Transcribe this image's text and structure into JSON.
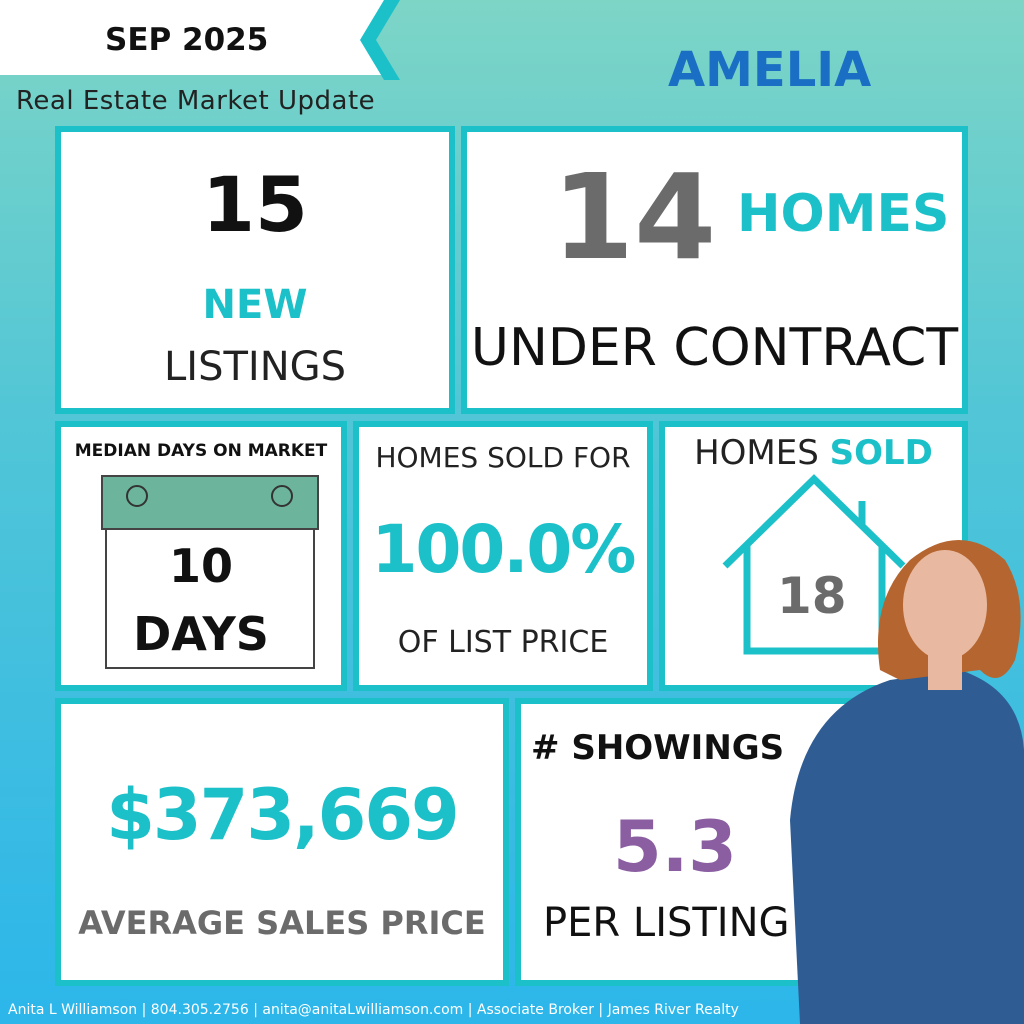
{
  "header": {
    "date": "SEP 2025",
    "subtitle": "Real Estate Market Update",
    "area": "AMELIA"
  },
  "new_listings": {
    "count": "15",
    "label1": "NEW",
    "label2": "LISTINGS"
  },
  "under_contract": {
    "count": "14",
    "label1": "HOMES",
    "label2": "UNDER CONTRACT"
  },
  "days_on_market": {
    "title": "MEDIAN DAYS ON MARKET",
    "value": "10",
    "unit": "DAYS"
  },
  "sold_pct": {
    "label1": "HOMES SOLD FOR",
    "value": "100.0%",
    "label2": "OF LIST PRICE"
  },
  "homes_sold": {
    "label1": "HOMES",
    "label2": "SOLD",
    "count": "18"
  },
  "avg_price": {
    "value": "$373,669",
    "label": "AVERAGE SALES PRICE"
  },
  "showings": {
    "title": "# SHOWINGS",
    "value": "5.3",
    "label": "PER LISTING"
  },
  "footer": {
    "text": "Anita L Williamson | 804.305.2756 | anita@anitaLwilliamson.com | Associate Broker | James River Realty"
  },
  "colors": {
    "teal": "#1cc0c8",
    "gray": "#6b6b6b",
    "purple": "#8a5ea0",
    "blue": "#1a6fc4"
  }
}
